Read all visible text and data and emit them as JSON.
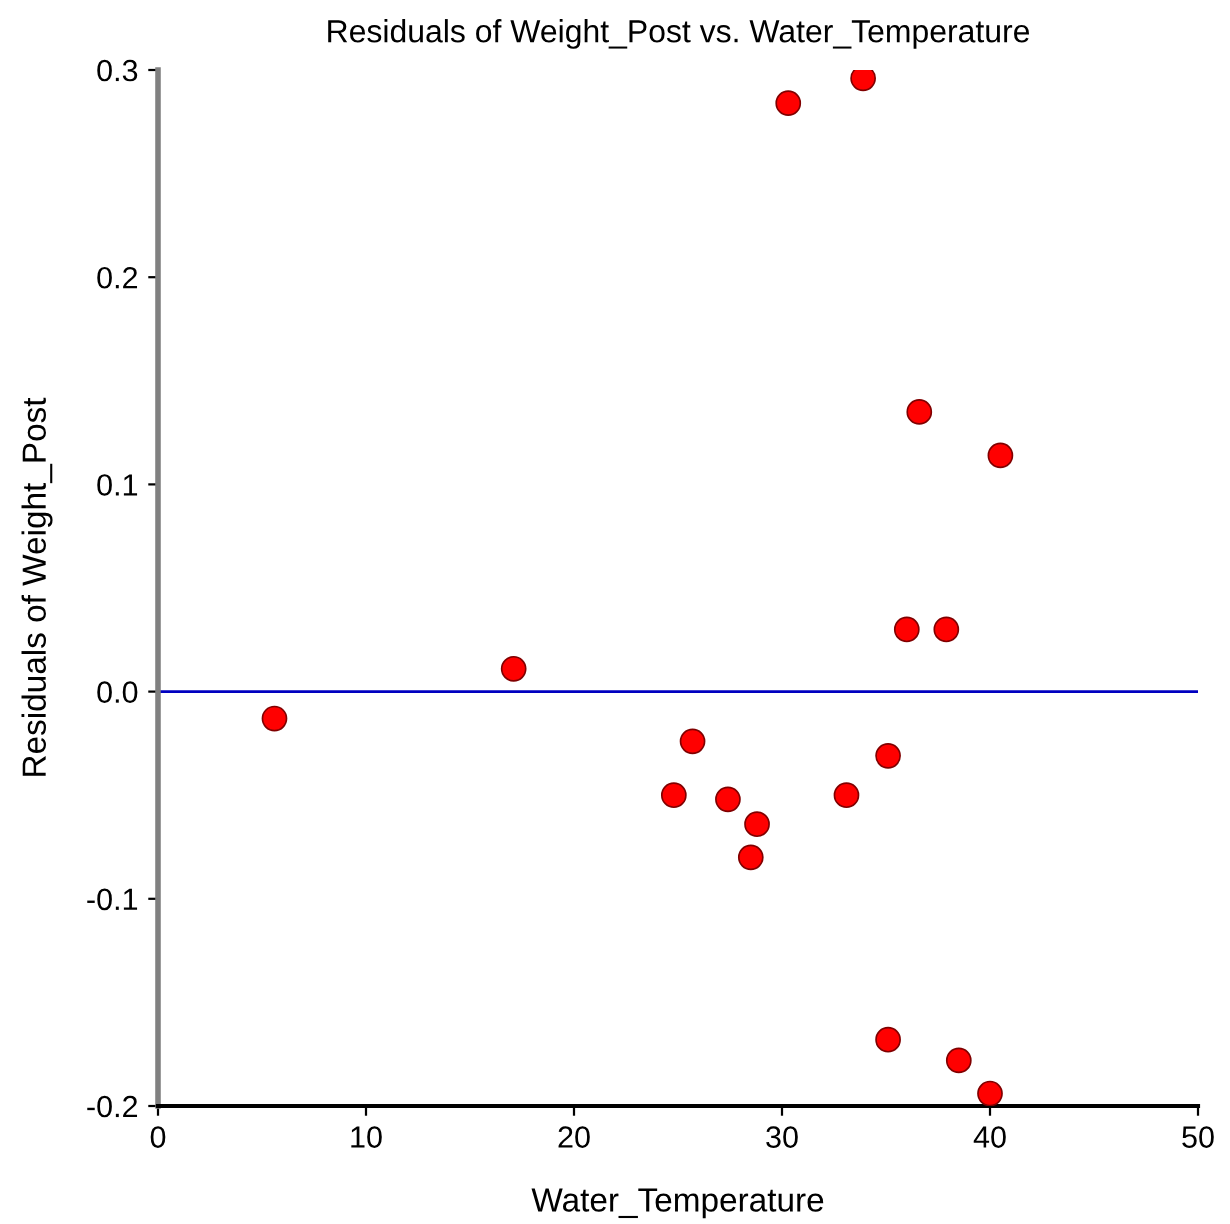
{
  "chart_data": {
    "type": "scatter",
    "title": "Residuals of Weight_Post vs. Water_Temperature",
    "xlabel": "Water_Temperature",
    "ylabel": "Residuals of Weight_Post",
    "x": [
      5.6,
      17.1,
      30.3,
      33.9,
      36.6,
      40.5,
      36.0,
      37.9,
      25.7,
      24.8,
      27.4,
      28.8,
      28.5,
      33.1,
      35.1,
      35.1,
      38.5,
      40.0
    ],
    "series": [
      {
        "color": "#ff0000",
        "values": [
          -0.013,
          0.011,
          0.284,
          0.296,
          0.135,
          0.114,
          0.03,
          0.03,
          -0.024,
          -0.05,
          -0.052,
          -0.064,
          -0.08,
          -0.05,
          -0.031,
          -0.168,
          -0.178,
          -0.194
        ]
      }
    ],
    "xlim": [
      0,
      50
    ],
    "ylim": [
      -0.2,
      0.3
    ],
    "xticks": [
      0,
      10,
      20,
      30,
      40,
      50
    ],
    "yticks": [
      {
        "value": -0.2,
        "label": "-0.2"
      },
      {
        "value": -0.1,
        "label": "-0.1"
      },
      {
        "value": 0,
        "label": "0.0"
      },
      {
        "value": 0.1,
        "label": "0.1"
      },
      {
        "value": 0.2,
        "label": "0.2"
      },
      {
        "value": 0.3,
        "label": "0.3"
      }
    ],
    "ref_lines": [
      {
        "axis": "y",
        "value": 0,
        "color": "#0000c0"
      }
    ],
    "marker": "circle",
    "grid": false,
    "legend": false
  }
}
